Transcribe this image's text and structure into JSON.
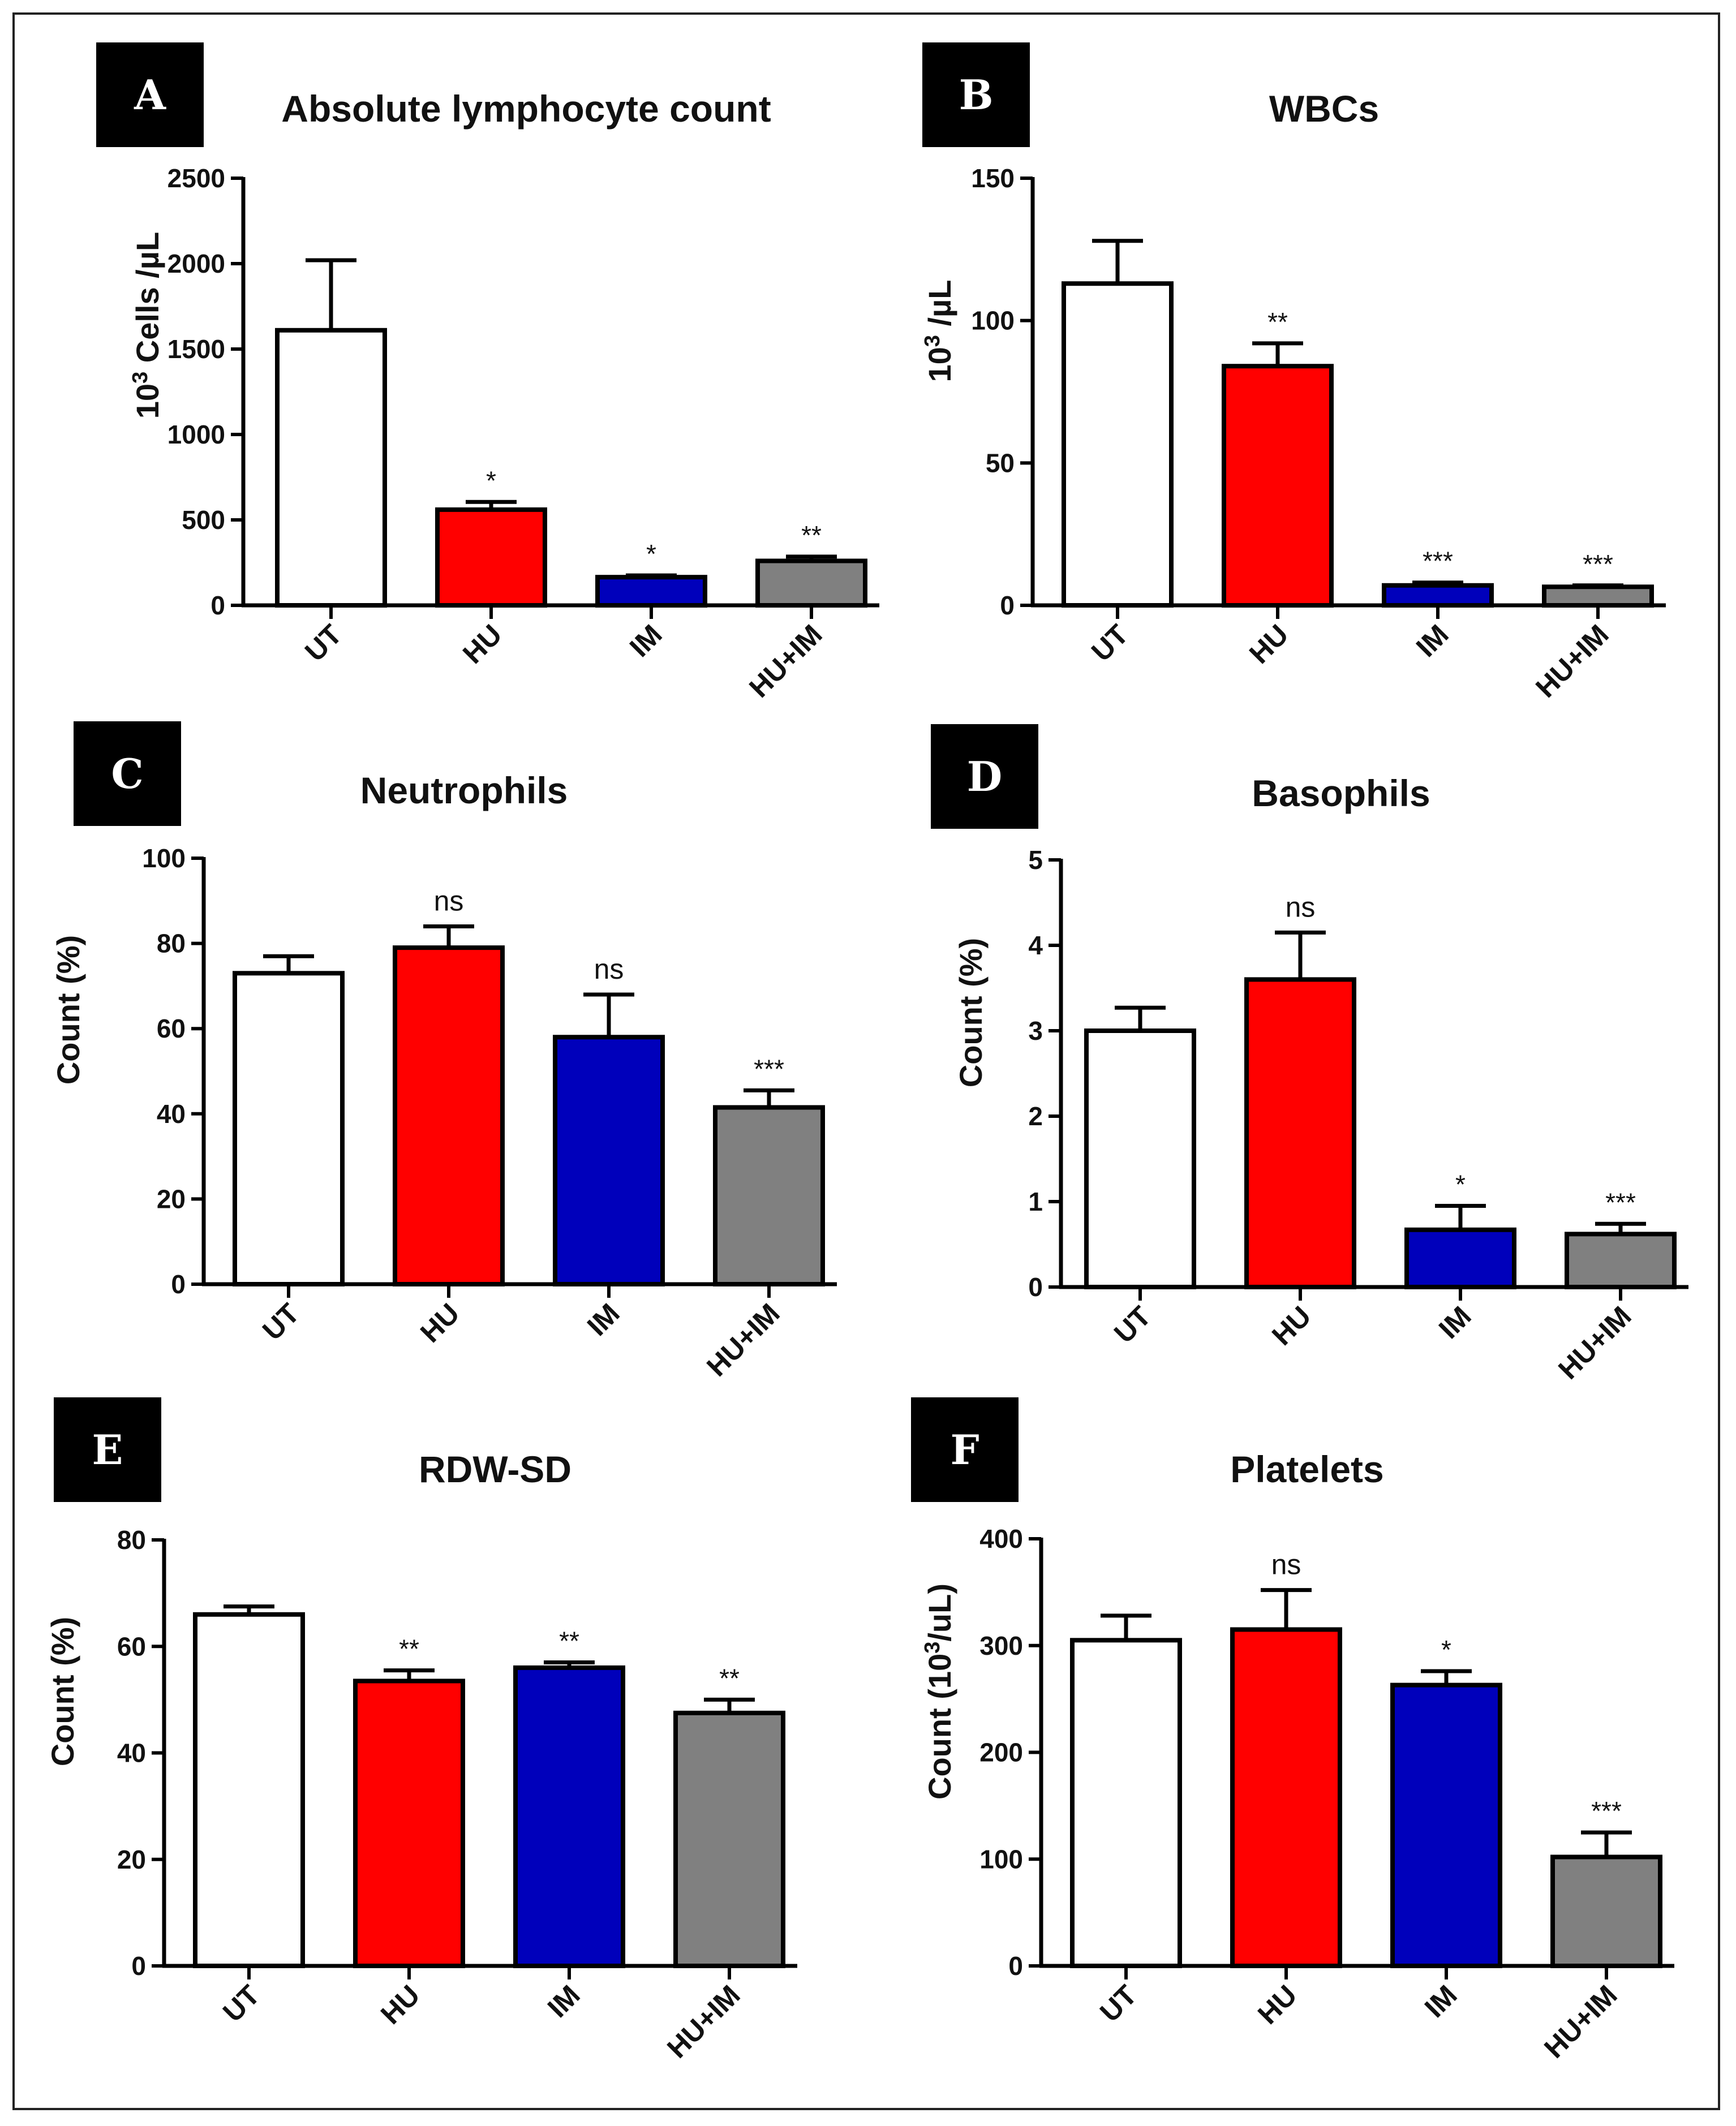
{
  "chart_data": [
    {
      "panel": "A",
      "type": "bar",
      "title": "Absolute lymphocyte count",
      "ylabel_base": "10",
      "ylabel_sup": "3",
      "ylabel_rest": " Cells /µL",
      "categories": [
        "UT",
        "HU",
        "IM",
        "HU+IM"
      ],
      "values": [
        1610,
        560,
        165,
        260
      ],
      "errors": [
        410,
        45,
        10,
        25
      ],
      "significance": [
        "",
        "*",
        "*",
        "**"
      ],
      "yticks": [
        0,
        500,
        1000,
        1500,
        2000,
        2500
      ],
      "ylim": [
        0,
        2500
      ]
    },
    {
      "panel": "B",
      "type": "bar",
      "title": "WBCs",
      "ylabel_base": "10",
      "ylabel_sup": "3",
      "ylabel_rest": " /µL",
      "categories": [
        "UT",
        "HU",
        "IM",
        "HU+IM"
      ],
      "values": [
        113,
        84,
        7,
        6.5
      ],
      "errors": [
        15,
        8,
        1,
        0.5
      ],
      "significance": [
        "",
        "**",
        "***",
        "***"
      ],
      "yticks": [
        0,
        50,
        100,
        150
      ],
      "ylim": [
        0,
        150
      ]
    },
    {
      "panel": "C",
      "type": "bar",
      "title": "Neutrophils",
      "ylabel_base": "Count (%)",
      "ylabel_sup": "",
      "ylabel_rest": "",
      "categories": [
        "UT",
        "HU",
        "IM",
        "HU+IM"
      ],
      "values": [
        73,
        79,
        58,
        41.5
      ],
      "errors": [
        4,
        5,
        10,
        4
      ],
      "significance": [
        "",
        "ns",
        "ns",
        "***"
      ],
      "yticks": [
        0,
        20,
        40,
        60,
        80,
        100
      ],
      "ylim": [
        0,
        100
      ]
    },
    {
      "panel": "D",
      "type": "bar",
      "title": "Basophils",
      "ylabel_base": "Count (%)",
      "ylabel_sup": "",
      "ylabel_rest": "",
      "categories": [
        "UT",
        "HU",
        "IM",
        "HU+IM"
      ],
      "values": [
        3.0,
        3.6,
        0.67,
        0.62
      ],
      "errors": [
        0.27,
        0.55,
        0.28,
        0.12
      ],
      "significance": [
        "",
        "ns",
        "*",
        "***"
      ],
      "yticks": [
        0,
        1,
        2,
        3,
        4,
        5
      ],
      "ylim": [
        0,
        5
      ]
    },
    {
      "panel": "E",
      "type": "bar",
      "title": "RDW-SD",
      "ylabel_base": "Count (%)",
      "ylabel_sup": "",
      "ylabel_rest": "",
      "categories": [
        "UT",
        "HU",
        "IM",
        "HU+IM"
      ],
      "values": [
        66,
        53.5,
        56,
        47.5
      ],
      "errors": [
        1.5,
        2,
        1,
        2.5
      ],
      "significance": [
        "",
        "**",
        "**",
        "**"
      ],
      "yticks": [
        0,
        20,
        40,
        60,
        80
      ],
      "ylim": [
        0,
        80
      ]
    },
    {
      "panel": "F",
      "type": "bar",
      "title": "Platelets",
      "ylabel_base": "Count (10",
      "ylabel_sup": "3",
      "ylabel_rest": "/uL)",
      "categories": [
        "UT",
        "HU",
        "IM",
        "HU+IM"
      ],
      "values": [
        305,
        315,
        263,
        102
      ],
      "errors": [
        23,
        37,
        13,
        23
      ],
      "significance": [
        "",
        "ns",
        "*",
        "***"
      ],
      "yticks": [
        0,
        100,
        200,
        300,
        400
      ],
      "ylim": [
        0,
        400
      ]
    }
  ],
  "colors": {
    "UT": "#ffffff",
    "HU": "#ff0000",
    "IM": "#0000bb",
    "HU+IM": "#808080",
    "outline": "#000000"
  }
}
